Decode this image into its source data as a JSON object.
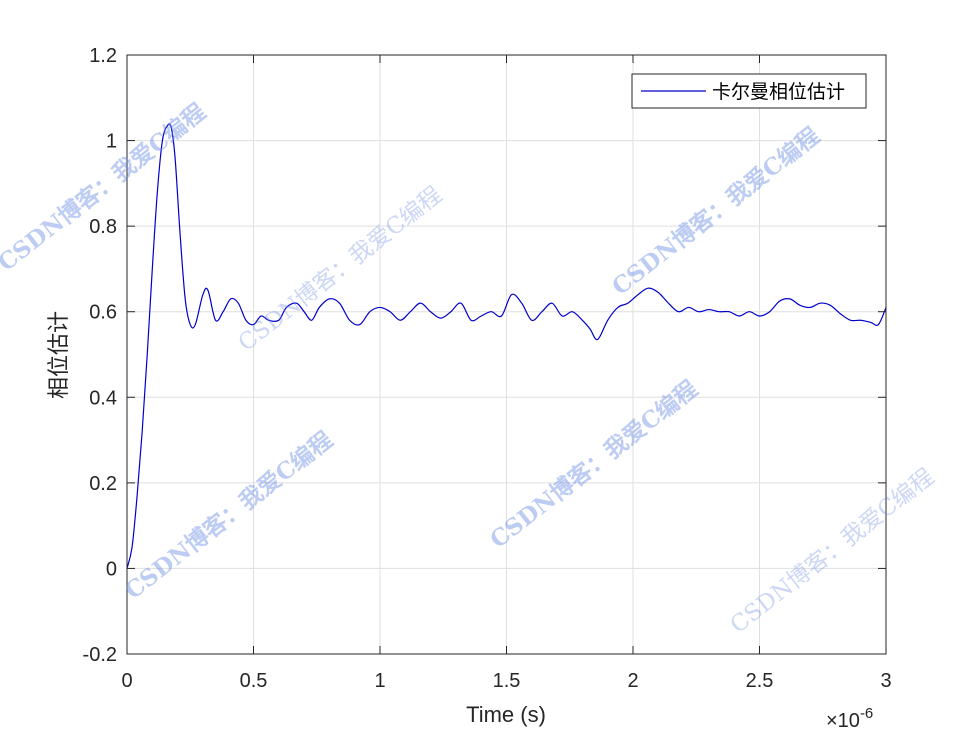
{
  "chart_data": {
    "type": "line",
    "title": "",
    "xlabel": "Time (s)",
    "ylabel": "相位估计",
    "x_exponent_label": "×10",
    "x_exponent_power": "-6",
    "xlim": [
      0,
      3
    ],
    "ylim": [
      -0.2,
      1.2
    ],
    "xticks": [
      "0",
      "0.5",
      "1",
      "1.5",
      "2",
      "2.5",
      "3"
    ],
    "yticks": [
      "-0.2",
      "0",
      "0.2",
      "0.4",
      "0.6",
      "0.8",
      "1",
      "1.2"
    ],
    "grid": true,
    "legend_position": "top-right",
    "series": [
      {
        "name": "卡尔曼相位估计",
        "color": "#0000cc",
        "x": [
          0,
          0.02,
          0.04,
          0.06,
          0.08,
          0.1,
          0.12,
          0.14,
          0.16,
          0.175,
          0.19,
          0.21,
          0.23,
          0.25,
          0.27,
          0.3,
          0.32,
          0.35,
          0.38,
          0.41,
          0.44,
          0.47,
          0.5,
          0.53,
          0.56,
          0.6,
          0.63,
          0.67,
          0.7,
          0.73,
          0.76,
          0.8,
          0.84,
          0.88,
          0.92,
          0.96,
          1.0,
          1.04,
          1.08,
          1.12,
          1.16,
          1.2,
          1.24,
          1.28,
          1.32,
          1.36,
          1.4,
          1.44,
          1.48,
          1.52,
          1.56,
          1.6,
          1.64,
          1.68,
          1.72,
          1.76,
          1.8,
          1.83,
          1.86,
          1.9,
          1.94,
          1.98,
          2.02,
          2.06,
          2.1,
          2.14,
          2.18,
          2.22,
          2.26,
          2.3,
          2.34,
          2.38,
          2.42,
          2.46,
          2.5,
          2.54,
          2.58,
          2.62,
          2.66,
          2.7,
          2.74,
          2.78,
          2.82,
          2.86,
          2.9,
          2.94,
          2.97,
          3.0
        ],
        "y": [
          0.0,
          0.05,
          0.17,
          0.32,
          0.5,
          0.7,
          0.88,
          1.0,
          1.035,
          1.03,
          0.96,
          0.78,
          0.63,
          0.57,
          0.57,
          0.64,
          0.65,
          0.58,
          0.6,
          0.63,
          0.62,
          0.58,
          0.57,
          0.59,
          0.58,
          0.58,
          0.61,
          0.62,
          0.6,
          0.58,
          0.61,
          0.63,
          0.62,
          0.58,
          0.57,
          0.6,
          0.61,
          0.6,
          0.58,
          0.6,
          0.62,
          0.6,
          0.585,
          0.6,
          0.62,
          0.58,
          0.59,
          0.6,
          0.59,
          0.64,
          0.62,
          0.58,
          0.6,
          0.62,
          0.59,
          0.6,
          0.58,
          0.56,
          0.535,
          0.58,
          0.61,
          0.62,
          0.64,
          0.655,
          0.645,
          0.62,
          0.6,
          0.61,
          0.6,
          0.605,
          0.6,
          0.6,
          0.59,
          0.6,
          0.59,
          0.6,
          0.625,
          0.63,
          0.615,
          0.61,
          0.62,
          0.615,
          0.595,
          0.58,
          0.58,
          0.575,
          0.57,
          0.61
        ]
      }
    ]
  },
  "watermarks": [
    {
      "text": "CSDN博客：我爱C编程",
      "style": "bold"
    },
    {
      "text": "CSDN博客：我爱C编程",
      "style": "light"
    },
    {
      "text": "CSDN博客：我爱C编程",
      "style": "bold"
    },
    {
      "text": "CSDN博客：我爱C编程",
      "style": "bold"
    },
    {
      "text": "CSDN博客：我爱C编程",
      "style": "bold"
    },
    {
      "text": "CSDN博客：我爱C编程",
      "style": "light"
    }
  ]
}
